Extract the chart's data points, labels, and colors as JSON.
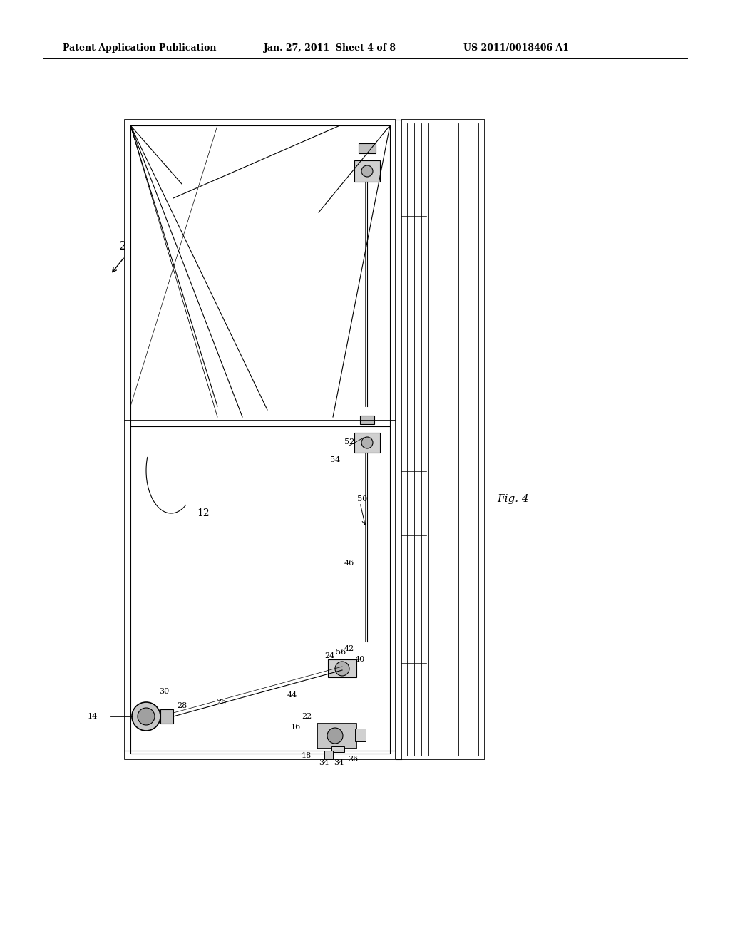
{
  "bg_color": "#ffffff",
  "header_text1": "Patent Application Publication",
  "header_text2": "Jan. 27, 2011  Sheet 4 of 8",
  "header_text3": "US 2011/0018406 A1",
  "fig_label": "Fig. 4",
  "ref_num": "2",
  "label_12": "12",
  "label_14": "14",
  "label_16": "16",
  "label_18": "18",
  "label_22": "22",
  "label_24": "24",
  "label_26": "26",
  "label_28": "28",
  "label_30": "30",
  "label_34a": "34",
  "label_34b": "34",
  "label_36": "36",
  "label_40": "40",
  "label_42": "42",
  "label_44": "44",
  "label_46": "46",
  "label_50": "50",
  "label_52": "52",
  "label_54": "54",
  "label_56": "56"
}
